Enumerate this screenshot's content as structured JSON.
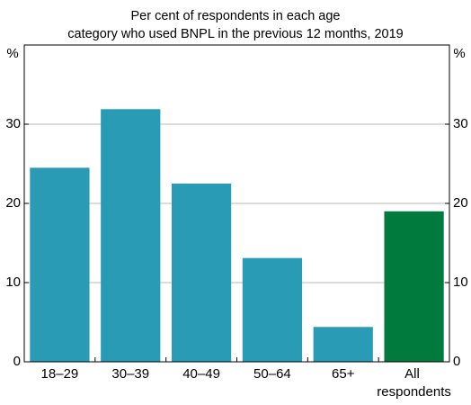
{
  "chart_data": {
    "type": "bar",
    "subtitle": [
      "Per cent of respondents in each age",
      "category who used BNPL in the previous 12 months, 2019"
    ],
    "y_label": "%",
    "y2_label": "%",
    "categories": [
      "18–29",
      "30–39",
      "40–49",
      "50–64",
      "65+",
      "All respondents"
    ],
    "values": [
      24.5,
      31.9,
      22.5,
      13.1,
      4.4,
      19.0
    ],
    "colors": [
      "#2a9bb5",
      "#2a9bb5",
      "#2a9bb5",
      "#2a9bb5",
      "#2a9bb5",
      "#007a3d"
    ],
    "ylim": [
      0,
      40
    ],
    "yticks": [
      0,
      10,
      20,
      30
    ],
    "grid": true
  }
}
